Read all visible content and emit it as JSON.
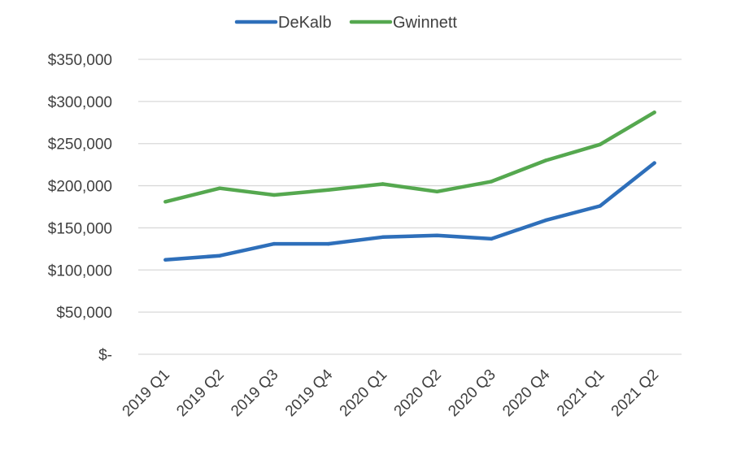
{
  "chart_data": {
    "type": "line",
    "title": "",
    "xlabel": "",
    "ylabel": "",
    "categories": [
      "2019 Q1",
      "2019 Q2",
      "2019 Q3",
      "2019 Q4",
      "2020 Q1",
      "2020 Q2",
      "2020 Q3",
      "2020 Q4",
      "2021 Q1",
      "2021 Q2"
    ],
    "series": [
      {
        "name": "DeKalb",
        "color": "#2e6fba",
        "values": [
          112000,
          117000,
          131000,
          131000,
          139000,
          141000,
          137000,
          159000,
          176000,
          227000
        ]
      },
      {
        "name": "Gwinnett",
        "color": "#55a84f",
        "values": [
          181000,
          197000,
          189000,
          195000,
          202000,
          193000,
          205000,
          230000,
          249000,
          287000
        ]
      }
    ],
    "ylim": [
      0,
      350000
    ],
    "y_ticks": [
      {
        "value": 350000,
        "label": "$350,000"
      },
      {
        "value": 300000,
        "label": "$300,000"
      },
      {
        "value": 250000,
        "label": "$250,000"
      },
      {
        "value": 200000,
        "label": "$200,000"
      },
      {
        "value": 150000,
        "label": "$150,000"
      },
      {
        "value": 100000,
        "label": "$100,000"
      },
      {
        "value": 50000,
        "label": "$50,000"
      },
      {
        "value": 0,
        "label": "$-"
      }
    ],
    "grid": true,
    "legend_position": "top-center"
  }
}
